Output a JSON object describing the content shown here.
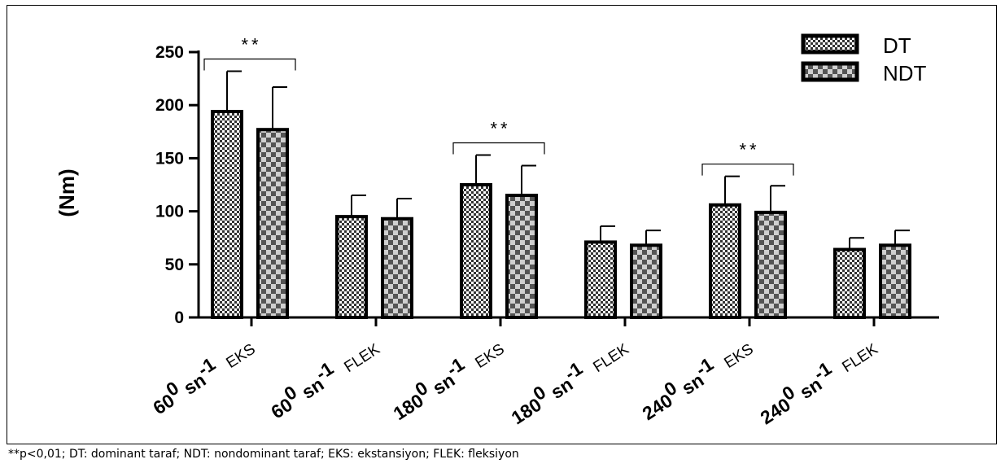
{
  "chart_data": {
    "type": "bar",
    "ylabel": "(Nm)",
    "ylim": [
      0,
      250
    ],
    "yticks": [
      0,
      50,
      100,
      150,
      200,
      250
    ],
    "categories": [
      {
        "main": "60",
        "sup": "0",
        "unit": " sn",
        "exp": "-1",
        "side": "EKS"
      },
      {
        "main": "60",
        "sup": "0",
        "unit": " sn",
        "exp": "-1",
        "side": "FLEK"
      },
      {
        "main": "180",
        "sup": "0",
        "unit": " sn",
        "exp": "-1",
        "side": "EKS"
      },
      {
        "main": "180",
        "sup": "0",
        "unit": " sn",
        "exp": "-1",
        "side": "FLEK"
      },
      {
        "main": "240",
        "sup": "0",
        "unit": " sn",
        "exp": "-1",
        "side": "EKS"
      },
      {
        "main": "240",
        "sup": "0",
        "unit": " sn",
        "exp": "-1",
        "side": "FLEK"
      }
    ],
    "series": [
      {
        "name": "DT",
        "values": [
          194,
          95,
          125,
          71,
          106,
          64
        ],
        "errors": [
          38,
          20,
          28,
          15,
          27,
          11
        ]
      },
      {
        "name": "NDT",
        "values": [
          177,
          93,
          115,
          68,
          99,
          68
        ],
        "errors": [
          40,
          19,
          28,
          14,
          25,
          14
        ]
      }
    ],
    "significance": [
      {
        "category": 0,
        "label": "**"
      },
      {
        "category": 2,
        "label": "**"
      },
      {
        "category": 4,
        "label": "**"
      }
    ],
    "legend_position": "top-right",
    "grid": false
  },
  "caption": "**p<0,01; DT: dominant taraf; NDT: nondominant taraf; EKS: ekstansiyon; FLEK: fleksiyon"
}
